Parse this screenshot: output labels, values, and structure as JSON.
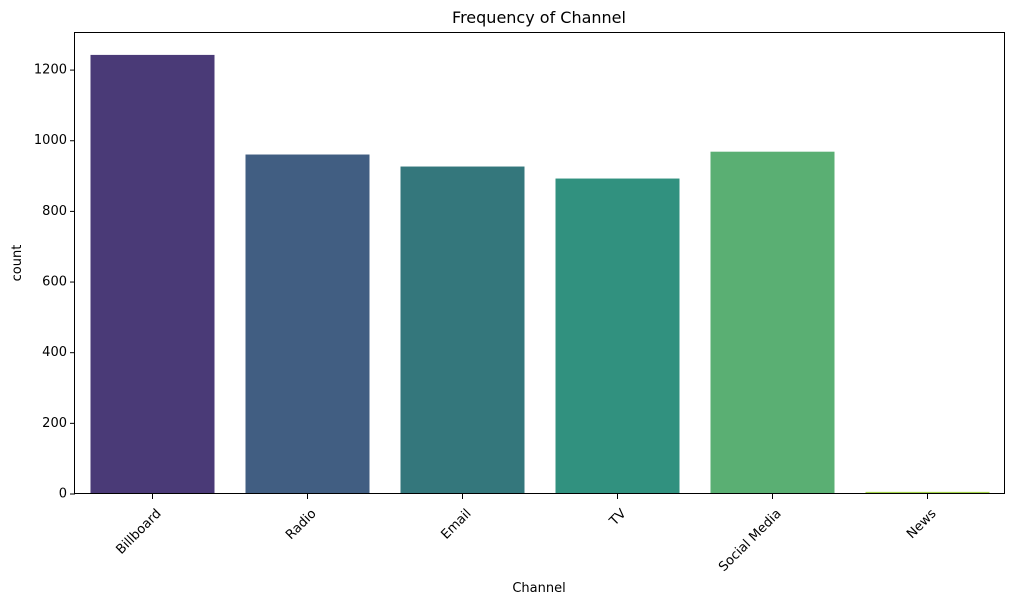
{
  "chart_data": {
    "type": "bar",
    "title": "Frequency of Channel",
    "xlabel": "Channel",
    "ylabel": "count",
    "categories": [
      "Billboard",
      "Radio",
      "Email",
      "TV",
      "Social Media",
      "News"
    ],
    "values": [
      1243,
      961,
      927,
      893,
      969,
      6
    ],
    "colors": [
      "#4a3a77",
      "#415e82",
      "#34777c",
      "#31917f",
      "#5aaf73",
      "#a4d34a"
    ],
    "ylim": [
      0,
      1305
    ],
    "yticks": [
      0,
      200,
      400,
      600,
      800,
      1000,
      1200
    ],
    "x_tick_rotation": 45,
    "grid": false,
    "legend": "none"
  }
}
